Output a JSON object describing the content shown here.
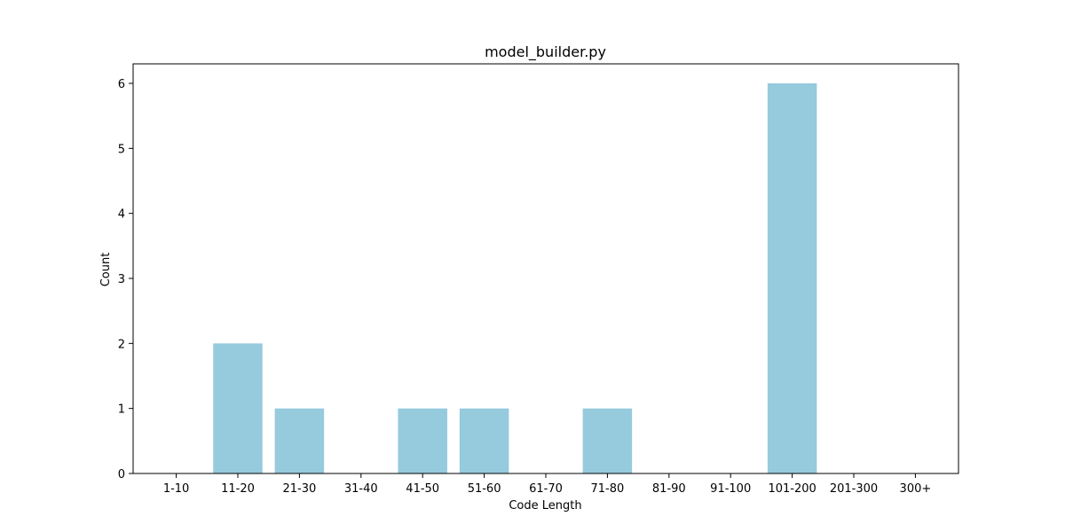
{
  "chart_data": {
    "type": "bar",
    "title": "model_builder.py",
    "xlabel": "Code Length",
    "ylabel": "Count",
    "categories": [
      "1-10",
      "11-20",
      "21-30",
      "31-40",
      "41-50",
      "51-60",
      "61-70",
      "71-80",
      "81-90",
      "91-100",
      "101-200",
      "201-300",
      "300+"
    ],
    "values": [
      0,
      2,
      1,
      0,
      1,
      1,
      0,
      1,
      0,
      0,
      6,
      0,
      0
    ],
    "ylim": [
      0,
      6.3
    ],
    "yticks": [
      0,
      1,
      2,
      3,
      4,
      5,
      6
    ],
    "bar_color": "#96cadd",
    "grid": false,
    "legend": "none"
  }
}
